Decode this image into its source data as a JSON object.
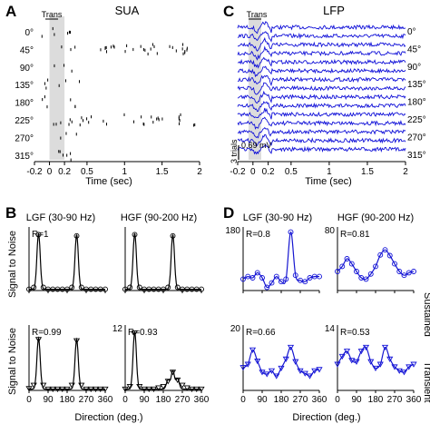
{
  "figure": {
    "panel_letters": [
      "A",
      "C",
      "B",
      "D"
    ],
    "direction_labels": [
      "0°",
      "45°",
      "90°",
      "135°",
      "180°",
      "225°",
      "270°",
      "315°"
    ],
    "trans_label": "Trans",
    "colors": {
      "spike": "#000000",
      "lfp": "#1010d8",
      "transient_shade": "#dcdcdc",
      "fit_line": "#000000",
      "fit_line_d": "#1515d0"
    }
  },
  "chart_data": [
    {
      "id": "A",
      "type": "scatter",
      "title": "SUA",
      "xlabel": "Time (sec)",
      "xlim": [
        -0.2,
        2
      ],
      "xticks": [
        "-0.2",
        "0",
        "0.2",
        "0.5",
        "1",
        "1.5",
        "2"
      ],
      "transient_window": [
        0,
        0.2
      ],
      "rows": [
        "0°",
        "45°",
        "90°",
        "135°",
        "180°",
        "225°",
        "270°",
        "315°"
      ]
    },
    {
      "id": "C",
      "type": "line",
      "title": "LFP",
      "xlabel": "Time (sec)",
      "xlim": [
        -0.2,
        2
      ],
      "xticks": [
        "-0.2",
        "0",
        "0.2",
        "0.5",
        "1",
        "1.5",
        "2"
      ],
      "transient_window": [
        0,
        0.2
      ],
      "scale_bar_time": "3 trials",
      "scale_bar_voltage": "0.69 mV",
      "rows": [
        "0°",
        "45°",
        "90°",
        "135°",
        "180°",
        "225°",
        "270°",
        "315°"
      ]
    },
    {
      "id": "B",
      "type": "line",
      "ylabel_top": "Signal to Noise",
      "ylabel_bottom": "Signal to Noise",
      "xlabel": "Direction (deg.)",
      "xticks": [
        "0",
        "90",
        "180",
        "270",
        "360"
      ],
      "subplots": [
        {
          "title": "LGF (30-90 Hz)",
          "r": "R=1",
          "marker": "circle",
          "x": [
            0,
            22.5,
            45,
            67.5,
            90,
            112.5,
            135,
            157.5,
            180,
            202.5,
            225,
            247.5,
            270,
            292.5,
            315,
            337.5,
            360
          ],
          "y": [
            0.02,
            0.05,
            0.88,
            0.05,
            0.02,
            0.02,
            0.02,
            0.02,
            0.02,
            0.05,
            0.86,
            0.05,
            0.02,
            0.02,
            0.02,
            0.02,
            0.02
          ]
        },
        {
          "title": "HGF (90-200 Hz)",
          "r": "",
          "marker": "circle",
          "x": [
            0,
            22.5,
            45,
            67.5,
            90,
            112.5,
            135,
            157.5,
            180,
            202.5,
            225,
            247.5,
            270,
            292.5,
            315,
            337.5,
            360
          ],
          "y": [
            0.02,
            0.05,
            0.88,
            0.05,
            0.02,
            0.02,
            0.02,
            0.02,
            0.02,
            0.05,
            0.86,
            0.05,
            0.02,
            0.02,
            0.02,
            0.02,
            0.02
          ]
        },
        {
          "title": "",
          "r": "R=0.99",
          "marker": "triangle",
          "x": [
            0,
            22.5,
            45,
            67.5,
            90,
            112.5,
            135,
            157.5,
            180,
            202.5,
            225,
            247.5,
            270,
            292.5,
            315,
            337.5,
            360
          ],
          "y": [
            0.03,
            0.08,
            0.78,
            0.08,
            0.02,
            0.02,
            0.02,
            0.02,
            0.02,
            0.08,
            0.76,
            0.08,
            0.02,
            0.02,
            0.02,
            0.02,
            0.02
          ]
        },
        {
          "title": "",
          "r": "R=0.93",
          "ytop": "12",
          "marker": "triangle",
          "x": [
            0,
            22.5,
            45,
            67.5,
            90,
            112.5,
            135,
            157.5,
            180,
            202.5,
            225,
            247.5,
            270,
            292.5,
            315,
            337.5,
            360
          ],
          "y": [
            0.02,
            0.06,
            0.88,
            0.06,
            0.02,
            0.02,
            0.02,
            0.04,
            0.06,
            0.14,
            0.28,
            0.16,
            0.08,
            0.04,
            0.02,
            0.02,
            0.02
          ]
        }
      ]
    },
    {
      "id": "D",
      "type": "scatter",
      "ylabel_top": "Sustained",
      "ylabel_bottom": "Transient",
      "xlabel": "Direction (deg.)",
      "xticks": [
        "0",
        "90",
        "180",
        "270",
        "360"
      ],
      "subplots": [
        {
          "title": "LGF (30-90 Hz)",
          "r": "R=0.8",
          "ytop": "180",
          "marker": "circle",
          "x": [
            0,
            22.5,
            45,
            67.5,
            90,
            112.5,
            135,
            157.5,
            180,
            202.5,
            225,
            247.5,
            270,
            292.5,
            315,
            337.5,
            360
          ],
          "y": [
            0.18,
            0.22,
            0.2,
            0.28,
            0.2,
            0.05,
            0.12,
            0.22,
            0.14,
            0.18,
            0.92,
            0.24,
            0.16,
            0.14,
            0.2,
            0.22,
            0.22
          ]
        },
        {
          "title": "HGF (90-200 Hz)",
          "r": "R=0.81",
          "ytop": "80",
          "marker": "circle",
          "x": [
            0,
            22.5,
            45,
            67.5,
            90,
            112.5,
            135,
            157.5,
            180,
            202.5,
            225,
            247.5,
            270,
            292.5,
            315,
            337.5,
            360
          ],
          "y": [
            0.3,
            0.38,
            0.5,
            0.42,
            0.3,
            0.2,
            0.18,
            0.26,
            0.38,
            0.56,
            0.64,
            0.55,
            0.42,
            0.3,
            0.24,
            0.28,
            0.3
          ]
        },
        {
          "title": "",
          "r": "R=0.66",
          "ytop": "20",
          "marker": "triangle",
          "x": [
            0,
            22.5,
            45,
            67.5,
            90,
            112.5,
            135,
            157.5,
            180,
            202.5,
            225,
            247.5,
            270,
            292.5,
            315,
            337.5,
            360
          ],
          "y": [
            0.35,
            0.4,
            0.62,
            0.45,
            0.28,
            0.25,
            0.3,
            0.22,
            0.34,
            0.48,
            0.66,
            0.44,
            0.3,
            0.26,
            0.22,
            0.3,
            0.32
          ]
        },
        {
          "title": "",
          "r": "R=0.53",
          "ytop": "14",
          "marker": "triangle",
          "x": [
            0,
            22.5,
            45,
            67.5,
            90,
            112.5,
            135,
            157.5,
            180,
            202.5,
            225,
            247.5,
            270,
            292.5,
            315,
            337.5,
            360
          ],
          "y": [
            0.4,
            0.52,
            0.6,
            0.46,
            0.44,
            0.6,
            0.66,
            0.44,
            0.34,
            0.4,
            0.66,
            0.48,
            0.36,
            0.3,
            0.28,
            0.36,
            0.4
          ]
        }
      ]
    }
  ]
}
